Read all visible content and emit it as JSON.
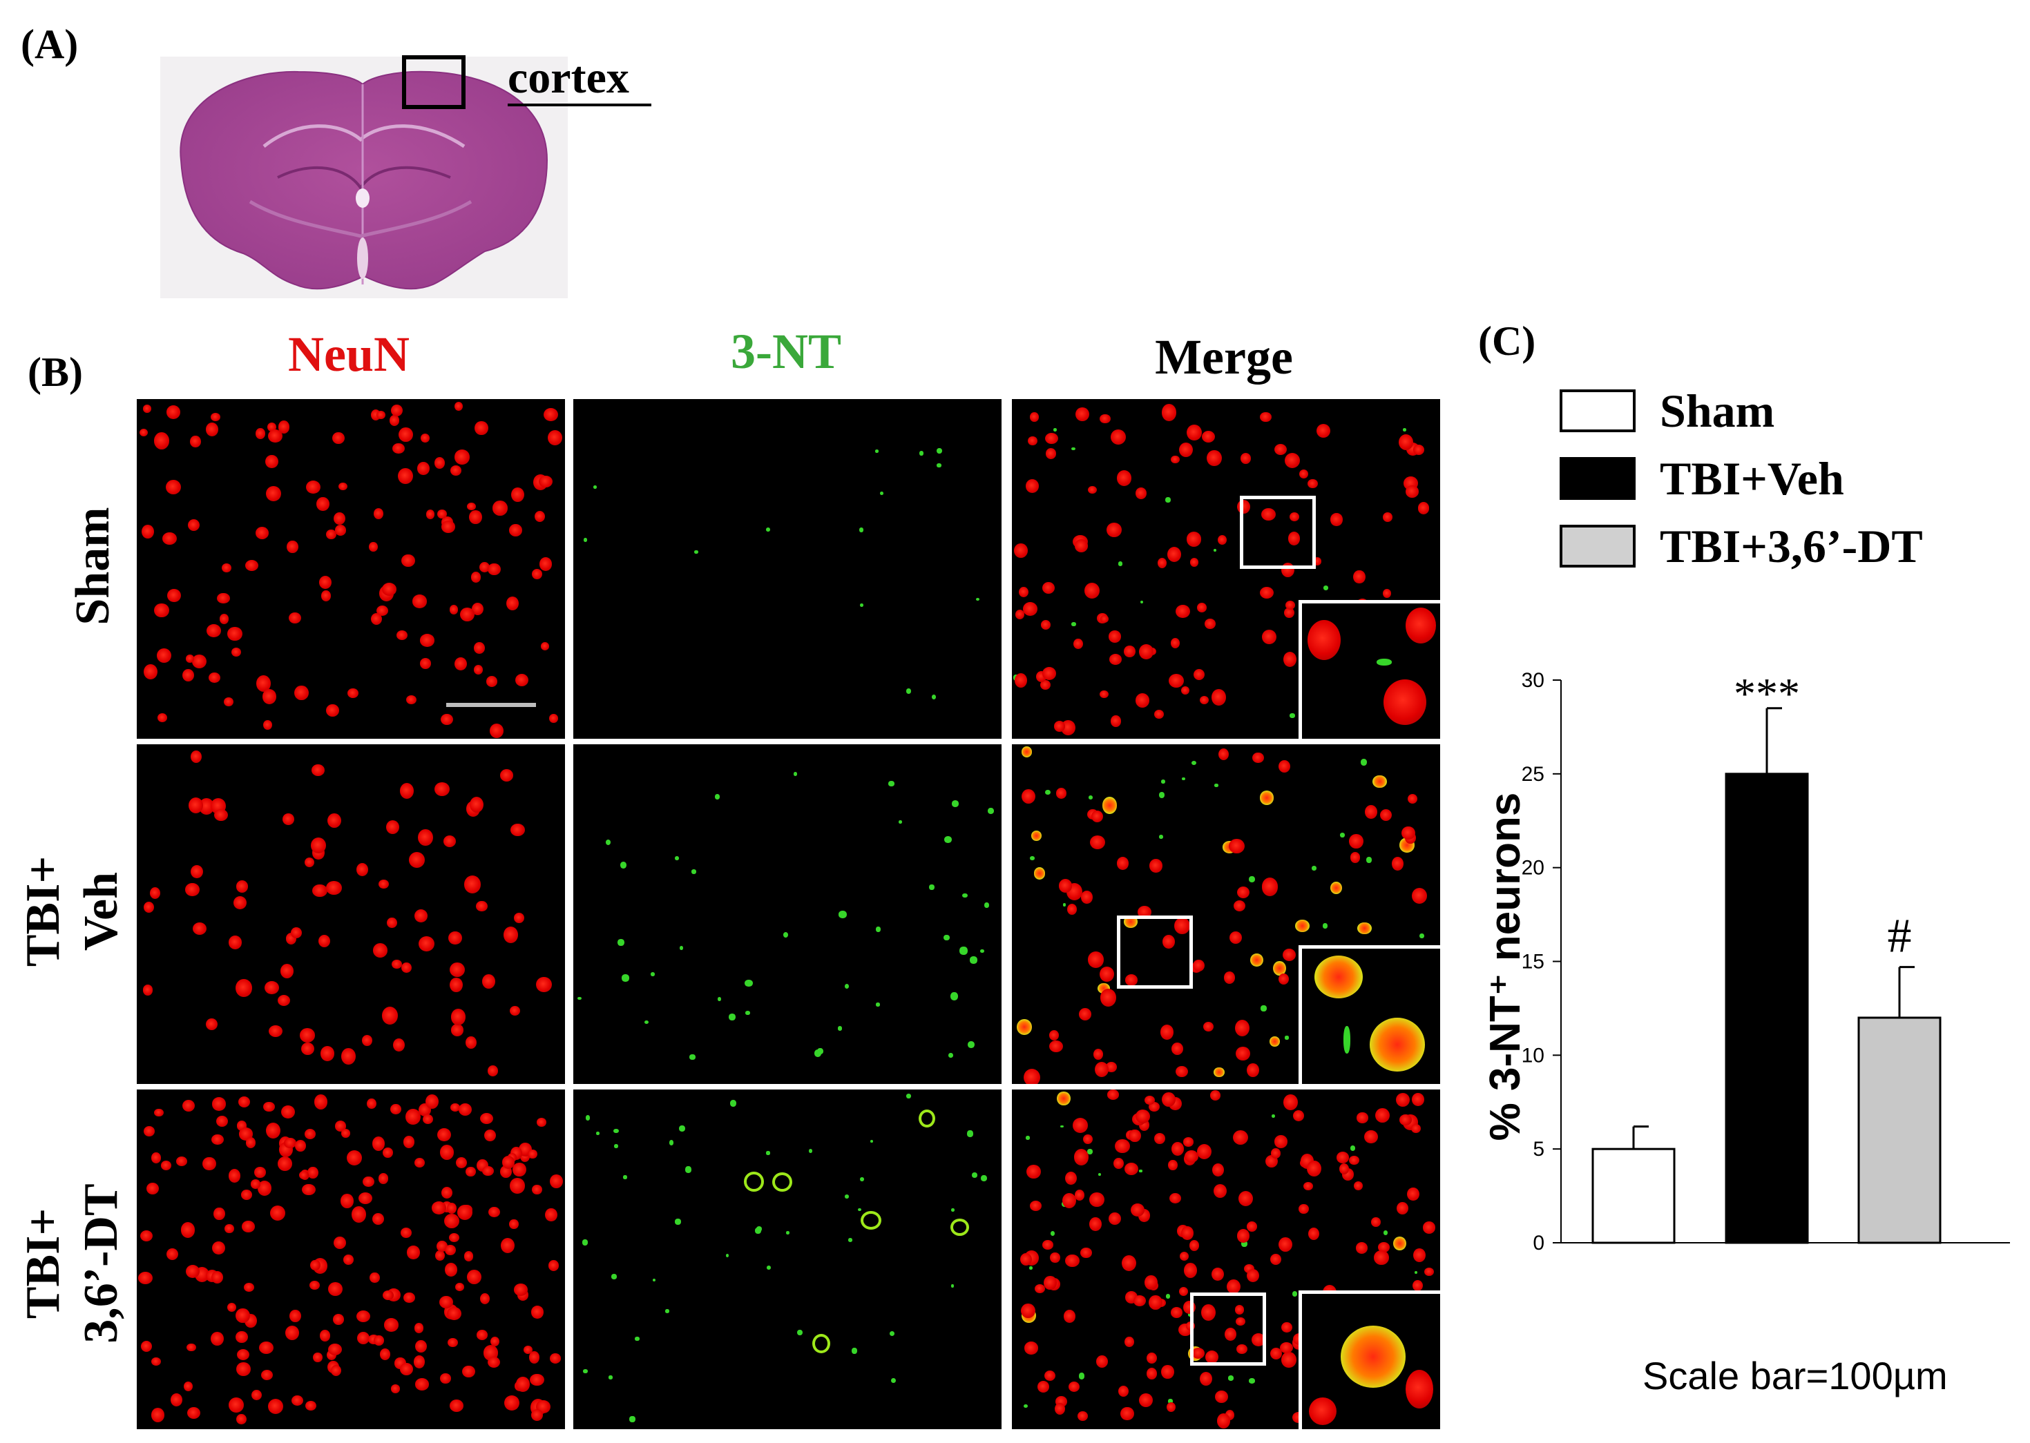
{
  "panel_a": {
    "label": "(A)",
    "region_label": "cortex"
  },
  "panel_b": {
    "label": "(B)",
    "columns": [
      "NeuN",
      "3-NT",
      "Merge"
    ],
    "column_colors": [
      "#e01010",
      "#3aa83a",
      "#000000"
    ],
    "rows": [
      {
        "lines": [
          "Sham"
        ]
      },
      {
        "lines": [
          "TBI+",
          "Veh"
        ]
      },
      {
        "lines": [
          "TBI+",
          "3,6’-DT"
        ]
      }
    ]
  },
  "panel_c": {
    "label": "(C)"
  },
  "chart_data": {
    "type": "bar",
    "categories": [
      "Sham",
      "TBI+Veh",
      "TBI+3,6’-DT"
    ],
    "values": [
      5,
      25,
      12
    ],
    "errors": [
      1.2,
      3.5,
      2.7
    ],
    "colors": [
      "#ffffff",
      "#000000",
      "#c8c8c8"
    ],
    "significance": [
      "",
      "***",
      "#"
    ],
    "ylabel": "% 3-NT⁺ neurons",
    "ylim": [
      0,
      30
    ],
    "yticks": [
      0,
      5,
      10,
      15,
      20,
      25,
      30
    ],
    "legend": [
      "Sham",
      "TBI+Veh",
      "TBI+3,6’-DT"
    ],
    "legend_position": "top",
    "grid": false
  },
  "scale_bar_text": "Scale bar=100µm"
}
